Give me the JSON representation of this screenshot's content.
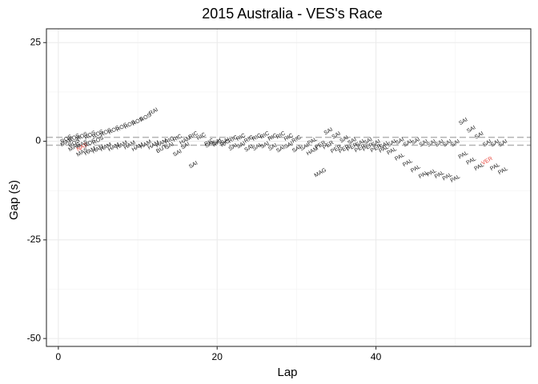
{
  "chart_data": {
    "type": "scatter",
    "title": "2015 Australia - VES's Race",
    "xlabel": "Lap",
    "ylabel": "Gap (s)",
    "xlim": [
      -1.5,
      59.5
    ],
    "ylim": [
      -52,
      28.5
    ],
    "x_ticks": [
      0,
      20,
      40
    ],
    "y_ticks": [
      25,
      0,
      -25,
      -50
    ],
    "grid": true,
    "reference_lines": [
      1,
      -1
    ],
    "label_rotation_deg": 30,
    "highlight_color": "#e8453c",
    "points": [
      {
        "x": 1,
        "y": 0.5,
        "label": "ROS"
      },
      {
        "x": 1,
        "y": -0.3,
        "label": "MAS"
      },
      {
        "x": 2,
        "y": 0.8,
        "label": "ROS"
      },
      {
        "x": 2,
        "y": -0.5,
        "label": "ROS"
      },
      {
        "x": 2,
        "y": -1.5,
        "label": "MAS"
      },
      {
        "x": 3,
        "y": 1.2,
        "label": "ROS"
      },
      {
        "x": 3,
        "y": -0.8,
        "label": "MAS"
      },
      {
        "x": 3,
        "y": -1.5,
        "label": "NAS",
        "highlight": true
      },
      {
        "x": 3,
        "y": -2.8,
        "label": "MAS"
      },
      {
        "x": 4,
        "y": 1.5,
        "label": "ROS"
      },
      {
        "x": 4,
        "y": -0.5,
        "label": "ROS"
      },
      {
        "x": 4,
        "y": -2.5,
        "label": "HAM"
      },
      {
        "x": 5,
        "y": 1.8,
        "label": "ROS"
      },
      {
        "x": 5,
        "y": 0.2,
        "label": "ROS"
      },
      {
        "x": 5,
        "y": -2.0,
        "label": "HAM"
      },
      {
        "x": 6,
        "y": 2.2,
        "label": "ROS"
      },
      {
        "x": 6,
        "y": -1.5,
        "label": "HAM"
      },
      {
        "x": 7,
        "y": 2.8,
        "label": "ROS"
      },
      {
        "x": 7,
        "y": -1.5,
        "label": "HAM"
      },
      {
        "x": 8,
        "y": 3.5,
        "label": "ROS"
      },
      {
        "x": 8,
        "y": -1.0,
        "label": "HAM"
      },
      {
        "x": 9,
        "y": 4.2,
        "label": "ROS"
      },
      {
        "x": 9,
        "y": -1.0,
        "label": "HAM"
      },
      {
        "x": 10,
        "y": 5.0,
        "label": "ROS"
      },
      {
        "x": 10,
        "y": -1.5,
        "label": "HAM"
      },
      {
        "x": 11,
        "y": 6.0,
        "label": "ROS"
      },
      {
        "x": 11,
        "y": -0.8,
        "label": "HAM"
      },
      {
        "x": 12,
        "y": 7.5,
        "label": "RAI"
      },
      {
        "x": 12,
        "y": -1.0,
        "label": "HAM"
      },
      {
        "x": 13,
        "y": -0.5,
        "label": "HAM"
      },
      {
        "x": 13,
        "y": -2.0,
        "label": "BUT"
      },
      {
        "x": 14,
        "y": 0.2,
        "label": "RIC"
      },
      {
        "x": 14,
        "y": -1.2,
        "label": "SAI"
      },
      {
        "x": 15,
        "y": 0.8,
        "label": "RIC"
      },
      {
        "x": 15,
        "y": -3.0,
        "label": "SAI"
      },
      {
        "x": 16,
        "y": -1.2,
        "label": "SAI"
      },
      {
        "x": 16,
        "y": 0.2,
        "label": "HAM"
      },
      {
        "x": 17,
        "y": 1.5,
        "label": "RIC"
      },
      {
        "x": 17,
        "y": -6.0,
        "label": "SAI"
      },
      {
        "x": 18,
        "y": 1.2,
        "label": "RIC"
      },
      {
        "x": 19,
        "y": -0.8,
        "label": "SAI"
      },
      {
        "x": 19,
        "y": -0.3,
        "label": "RIC"
      },
      {
        "x": 20,
        "y": -0.2,
        "label": "SAI"
      },
      {
        "x": 20,
        "y": -0.5,
        "label": "RIC"
      },
      {
        "x": 21,
        "y": 0.0,
        "label": "SAI"
      },
      {
        "x": 21,
        "y": -0.5,
        "label": "RIC"
      },
      {
        "x": 22,
        "y": -1.5,
        "label": "SAI"
      },
      {
        "x": 22,
        "y": 0.5,
        "label": "RIC"
      },
      {
        "x": 23,
        "y": -1.0,
        "label": "SAI"
      },
      {
        "x": 23,
        "y": 1.0,
        "label": "RIC"
      },
      {
        "x": 24,
        "y": -1.8,
        "label": "SAI"
      },
      {
        "x": 24,
        "y": 0.5,
        "label": "RIC"
      },
      {
        "x": 25,
        "y": -1.5,
        "label": "SAI"
      },
      {
        "x": 25,
        "y": 1.0,
        "label": "RIC"
      },
      {
        "x": 26,
        "y": -1.0,
        "label": "SAI"
      },
      {
        "x": 26,
        "y": 1.5,
        "label": "RIC"
      },
      {
        "x": 27,
        "y": -1.5,
        "label": "SAI"
      },
      {
        "x": 27,
        "y": 1.0,
        "label": "RIC"
      },
      {
        "x": 28,
        "y": -2.0,
        "label": "SAI"
      },
      {
        "x": 28,
        "y": 1.5,
        "label": "RIC"
      },
      {
        "x": 29,
        "y": -1.0,
        "label": "SAI"
      },
      {
        "x": 29,
        "y": 1.0,
        "label": "RIC"
      },
      {
        "x": 30,
        "y": -2.0,
        "label": "SAI"
      },
      {
        "x": 30,
        "y": 0.5,
        "label": "RIC"
      },
      {
        "x": 31,
        "y": -1.5,
        "label": "SAI"
      },
      {
        "x": 32,
        "y": -2.5,
        "label": "HAM"
      },
      {
        "x": 32,
        "y": 0.0,
        "label": "PAL"
      },
      {
        "x": 33,
        "y": -1.0,
        "label": "PER"
      },
      {
        "x": 33,
        "y": -8.0,
        "label": "MAG"
      },
      {
        "x": 34,
        "y": 2.5,
        "label": "SAI"
      },
      {
        "x": 34,
        "y": -1.0,
        "label": "PER"
      },
      {
        "x": 35,
        "y": 1.5,
        "label": "SAI"
      },
      {
        "x": 35,
        "y": -2.0,
        "label": "PER"
      },
      {
        "x": 36,
        "y": 0.5,
        "label": "SAI"
      },
      {
        "x": 36,
        "y": -2.0,
        "label": "PER"
      },
      {
        "x": 37,
        "y": 0.0,
        "label": "SAI"
      },
      {
        "x": 37,
        "y": -1.5,
        "label": "PER"
      },
      {
        "x": 38,
        "y": -0.5,
        "label": "SAI"
      },
      {
        "x": 38,
        "y": -1.8,
        "label": "PER"
      },
      {
        "x": 39,
        "y": 0.0,
        "label": "SAI"
      },
      {
        "x": 39,
        "y": -1.5,
        "label": "PER"
      },
      {
        "x": 40,
        "y": -0.5,
        "label": "SAI"
      },
      {
        "x": 40,
        "y": -1.8,
        "label": "PER"
      },
      {
        "x": 41,
        "y": -1.0,
        "label": "SAI"
      },
      {
        "x": 41,
        "y": -2.0,
        "label": "PAL"
      },
      {
        "x": 42,
        "y": -0.5,
        "label": "SAI"
      },
      {
        "x": 42,
        "y": -2.5,
        "label": "PAL"
      },
      {
        "x": 43,
        "y": 0.0,
        "label": "SAI"
      },
      {
        "x": 43,
        "y": -4.0,
        "label": "PAL"
      },
      {
        "x": 44,
        "y": -0.5,
        "label": "SAI"
      },
      {
        "x": 44,
        "y": -5.5,
        "label": "PAL"
      },
      {
        "x": 45,
        "y": 0.0,
        "label": "SAI"
      },
      {
        "x": 45,
        "y": -7.0,
        "label": "PAL"
      },
      {
        "x": 46,
        "y": -0.5,
        "label": "SAI"
      },
      {
        "x": 46,
        "y": -8.5,
        "label": "PAL"
      },
      {
        "x": 47,
        "y": -0.5,
        "label": "SAI"
      },
      {
        "x": 47,
        "y": -8.0,
        "label": "PAL"
      },
      {
        "x": 48,
        "y": -0.5,
        "label": "SAI"
      },
      {
        "x": 48,
        "y": -8.5,
        "label": "PAL"
      },
      {
        "x": 49,
        "y": -0.5,
        "label": "SAI"
      },
      {
        "x": 49,
        "y": -9.0,
        "label": "PAL"
      },
      {
        "x": 50,
        "y": -0.5,
        "label": "SAI"
      },
      {
        "x": 50,
        "y": -9.5,
        "label": "PAL"
      },
      {
        "x": 51,
        "y": 5.0,
        "label": "SAI"
      },
      {
        "x": 51,
        "y": -3.5,
        "label": "PAL"
      },
      {
        "x": 52,
        "y": 3.0,
        "label": "SAI"
      },
      {
        "x": 52,
        "y": -5.0,
        "label": "PAL"
      },
      {
        "x": 53,
        "y": 1.5,
        "label": "SAI"
      },
      {
        "x": 53,
        "y": -6.5,
        "label": "PAL"
      },
      {
        "x": 54,
        "y": -0.5,
        "label": "SAI"
      },
      {
        "x": 54,
        "y": -5.0,
        "label": "VER",
        "highlight": true
      },
      {
        "x": 55,
        "y": -0.5,
        "label": "SAI"
      },
      {
        "x": 55,
        "y": -6.5,
        "label": "PAL"
      },
      {
        "x": 56,
        "y": -0.5,
        "label": "SAI"
      },
      {
        "x": 56,
        "y": -7.5,
        "label": "PAL"
      }
    ]
  }
}
